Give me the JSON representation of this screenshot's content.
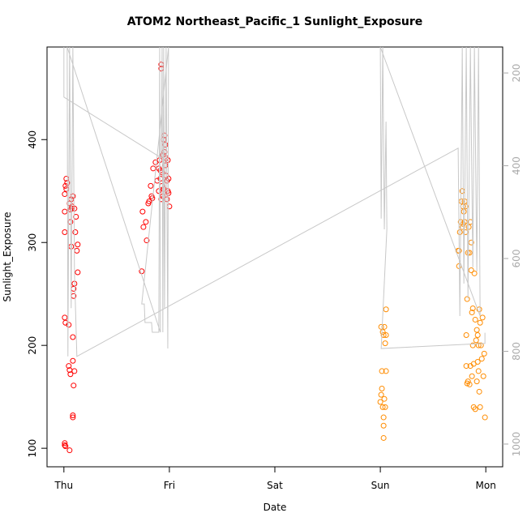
{
  "chart_data": {
    "type": "scatter",
    "title": "ATOM2 Northeast_Pacific_1 Sunlight_Exposure",
    "x_label": "Date",
    "y_label": "Sunlight_Exposure",
    "xlim": [
      -0.16,
      4.16
    ],
    "xticks": [
      {
        "value": 0,
        "label": "Thu"
      },
      {
        "value": 1,
        "label": "Fri"
      },
      {
        "value": 2,
        "label": "Sat"
      },
      {
        "value": 3,
        "label": "Sun"
      },
      {
        "value": 4,
        "label": "Mon"
      }
    ],
    "ylim": [
      82,
      490
    ],
    "yticks": [
      100,
      200,
      300,
      400
    ],
    "y2lim": [
      1049,
      144
    ],
    "y2ticks": [
      200,
      400,
      600,
      800,
      1000
    ],
    "series": [
      {
        "color": "#ff0000",
        "mode": "points",
        "x": [
          0.008,
          0.008,
          0.008,
          0.015,
          0.023,
          0.023,
          0.031,
          0.008,
          0.015,
          0.046,
          0.008,
          0.008,
          0.015,
          0.054,
          0.046,
          0.054,
          0.062,
          0.085,
          0.085,
          0.085,
          0.085,
          0.092,
          0.069,
          0.062,
          0.077,
          0.085,
          0.1,
          0.092,
          0.092,
          0.1,
          0.108,
          0.115,
          0.123,
          0.131,
          0.131,
          0.062,
          0.054,
          0.069,
          0.1,
          0.077,
          0.738,
          0.746,
          0.754,
          0.777,
          0.785,
          0.8,
          0.808,
          0.823,
          0.831,
          0.838,
          0.846,
          0.869,
          0.885,
          0.9,
          0.908,
          0.915,
          0.923,
          0.923,
          0.931,
          0.938,
          0.946,
          0.954,
          0.954,
          0.962,
          0.969,
          0.977,
          0.985,
          0.992,
          1.0,
          0.938,
          0.923,
          0.9,
          0.985,
          0.962,
          0.977,
          0.931,
          0.915,
          0.946,
          0.969,
          0.992
        ],
        "values": [
          310,
          330,
          347,
          355,
          362,
          352,
          358,
          227,
          222,
          220,
          105,
          103,
          102,
          98,
          180,
          176,
          172,
          185,
          208,
          132,
          130,
          161,
          296,
          320,
          335,
          345,
          333,
          255,
          248,
          260,
          310,
          325,
          292,
          271,
          298,
          332,
          338,
          342,
          175,
          333,
          272,
          330,
          315,
          320,
          302,
          338,
          340,
          355,
          345,
          343,
          372,
          378,
          360,
          350,
          380,
          370,
          473,
          469,
          355,
          385,
          400,
          404,
          388,
          375,
          365,
          360,
          350,
          348,
          335,
          345,
          342,
          372,
          380,
          395,
          342,
          368,
          362,
          352,
          382,
          362
        ]
      },
      {
        "color": "#ff8c00",
        "mode": "points",
        "x": [
          3.0,
          3.008,
          3.015,
          3.015,
          3.031,
          3.031,
          3.031,
          3.008,
          3.023,
          3.038,
          3.046,
          3.054,
          3.054,
          3.054,
          3.038,
          3.023,
          3.046,
          3.031,
          3.738,
          3.746,
          3.754,
          3.762,
          3.769,
          3.777,
          3.785,
          3.792,
          3.8,
          3.808,
          3.815,
          3.823,
          3.831,
          3.838,
          3.846,
          3.854,
          3.862,
          3.869,
          3.877,
          3.892,
          3.9,
          3.908,
          3.915,
          3.923,
          3.931,
          3.938,
          3.946,
          3.954,
          3.962,
          3.969,
          3.977,
          3.985,
          3.992,
          3.877,
          3.854,
          3.846,
          3.831,
          3.815,
          3.869,
          3.885,
          3.9,
          3.915,
          3.931,
          3.946,
          3.923,
          3.938,
          3.885,
          3.862,
          3.8,
          3.777,
          3.746,
          3.785,
          3.808,
          3.823
        ],
        "values": [
          145,
          152,
          158,
          175,
          130,
          122,
          110,
          218,
          213,
          218,
          202,
          235,
          210,
          175,
          148,
          140,
          140,
          210,
          292,
          277,
          310,
          320,
          340,
          350,
          335,
          330,
          320,
          335,
          210,
          245,
          290,
          315,
          290,
          320,
          300,
          232,
          236,
          270,
          225,
          205,
          215,
          184,
          175,
          155,
          140,
          200,
          187,
          227,
          170,
          192,
          130,
          200,
          180,
          162,
          165,
          180,
          170,
          140,
          138,
          165,
          200,
          222,
          210,
          235,
          182,
          273,
          340,
          315,
          292,
          318,
          310,
          163
        ]
      },
      {
        "color": "#c8c8c8",
        "mode": "lines",
        "axis": "y2",
        "x": [
          0,
          0,
          0.923,
          0.931,
          0.938,
          0.946,
          0.954,
          0.969,
          0.985,
          0.992,
          0.738,
          0.762,
          0.769,
          0.831,
          0.838,
          0.9,
          0.908,
          0.915,
          0.031,
          0.038,
          0.054,
          0.069,
          0.085,
          0.1,
          0.123,
          3.738,
          3.754,
          3.777,
          3.792,
          3.815,
          3.831,
          3.854,
          3.877,
          3.892,
          3.915,
          3.931,
          3.946,
          3.0,
          3.008,
          3.023,
          3.038,
          3.054,
          3.062,
          3.008,
          3.992,
          3.992
        ],
        "values": [
          144,
          252,
          383,
          144,
          759,
          144,
          707,
          144,
          794,
          144,
          698,
          698,
          738,
          738,
          759,
          759,
          144,
          759,
          144,
          811,
          144,
          707,
          144,
          628,
          811,
          362,
          724,
          144,
          654,
          144,
          686,
          144,
          619,
          144,
          628,
          144,
          724,
          144,
          514,
          144,
          537,
          305,
          537,
          794,
          783,
          760
        ]
      }
    ]
  }
}
